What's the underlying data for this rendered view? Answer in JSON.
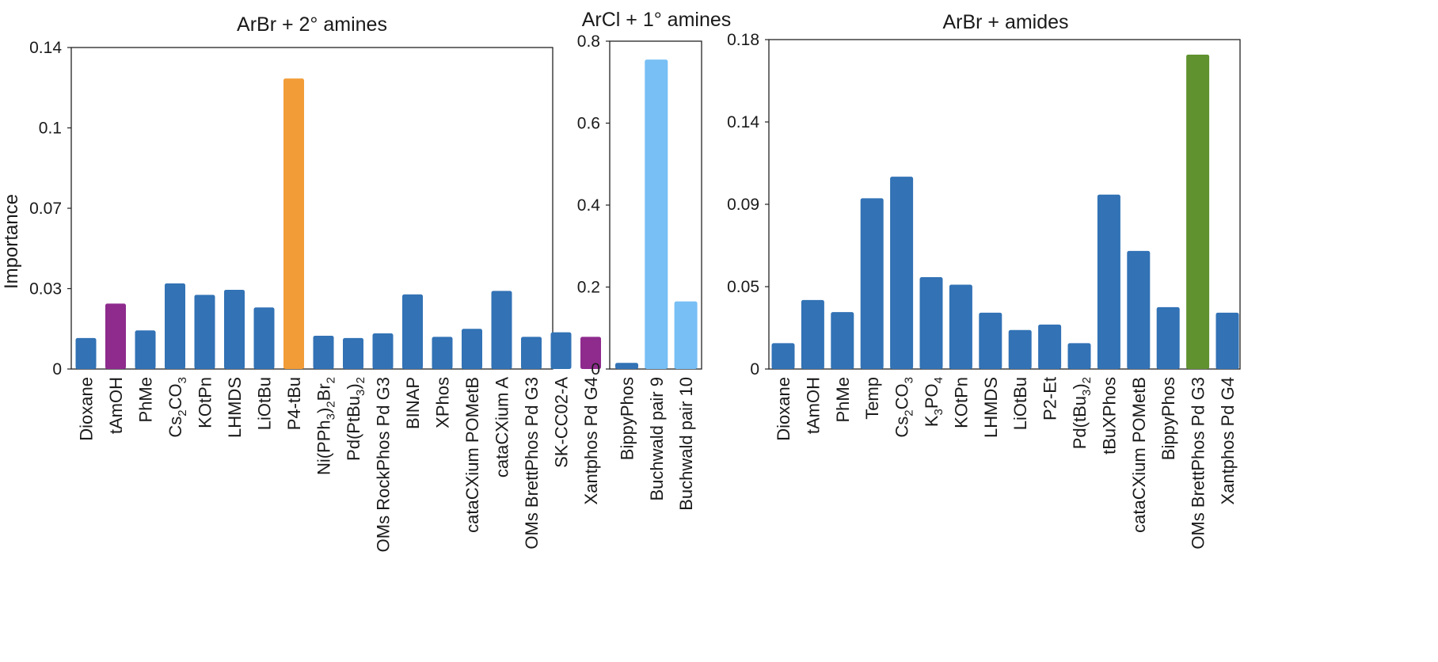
{
  "figure": {
    "ylabel": "Importance"
  },
  "colors": {
    "default": "#3272b5",
    "purple": "#8e2b8d",
    "orange": "#f29c38",
    "lightblue": "#77bff5",
    "green": "#60922f"
  },
  "chart_data": [
    {
      "type": "bar",
      "title": "ArBr + 2° amines",
      "ylabel": "Importance",
      "ylim": [
        0,
        0.14
      ],
      "yticks": [
        "0",
        "0.03",
        "0.07",
        "0.1",
        "0.14"
      ],
      "categories": [
        "Dioxane",
        "tAmOH",
        "PhMe",
        "Cs<sub>2</sub>CO<sub>3</sub>",
        "KOtPn",
        "LHMDS",
        "LiOtBu",
        "P4-tBu",
        "Ni(PPh<sub>3</sub>)<sub>2</sub>Br<sub>2</sub>",
        "Pd(PtBu<sub>3</sub>)<sub>2</sub>",
        "OMs RockPhos Pd G3",
        "BINAP",
        "XPhos",
        "cataCXium POMetB",
        "cataCXium A",
        "OMs BrettPhos Pd G3",
        "SK-CC02-A",
        "Xantphos Pd G4"
      ],
      "values": [
        0.0135,
        0.0285,
        0.0168,
        0.0373,
        0.0323,
        0.0345,
        0.0268,
        0.1265,
        0.0145,
        0.0135,
        0.0155,
        0.0325,
        0.014,
        0.0175,
        0.034,
        0.014,
        0.016,
        0.014
      ],
      "bar_colors": [
        "default",
        "purple",
        "default",
        "default",
        "default",
        "default",
        "default",
        "orange",
        "default",
        "default",
        "default",
        "default",
        "default",
        "default",
        "default",
        "default",
        "default",
        "purple"
      ]
    },
    {
      "type": "bar",
      "title": "ArCl + 1° amines",
      "ylim": [
        0,
        0.8
      ],
      "yticks": [
        "0",
        "0.2",
        "0.4",
        "0.6",
        "0.8"
      ],
      "categories": [
        "BippyPhos",
        "Buchwald pair 9",
        "Buchwald pair 10"
      ],
      "values": [
        0.015,
        0.755,
        0.165
      ],
      "bar_colors": [
        "default",
        "lightblue",
        "lightblue"
      ]
    },
    {
      "type": "bar",
      "title": "ArBr + amides",
      "ylim": [
        0,
        0.18
      ],
      "yticks": [
        "0",
        "0.05",
        "0.09",
        "0.14",
        "0.18"
      ],
      "categories": [
        "Dioxane",
        "tAmOH",
        "PhMe",
        "Temp",
        "Cs<sub>2</sub>CO<sub>3</sub>",
        "K<sub>3</sub>PO<sub>4</sub>",
        "KOtPn",
        "LHMDS",
        "LiOtBu",
        "P2-Et",
        "Pd(tBu<sub>3</sub>)<sub>2</sub>",
        "tBuXPhos",
        "cataCXium POMetB",
        "BippyPhos",
        "OMs BrettPhos Pd G3",
        "Xantphos Pd G4"
      ],
      "values": [
        0.0141,
        0.0377,
        0.0311,
        0.0933,
        0.1051,
        0.0502,
        0.0461,
        0.0308,
        0.0213,
        0.0243,
        0.0141,
        0.0953,
        0.0645,
        0.0338,
        0.1718,
        0.0308
      ],
      "bar_colors": [
        "default",
        "default",
        "default",
        "default",
        "default",
        "default",
        "default",
        "default",
        "default",
        "default",
        "default",
        "default",
        "default",
        "default",
        "green",
        "default"
      ]
    }
  ]
}
